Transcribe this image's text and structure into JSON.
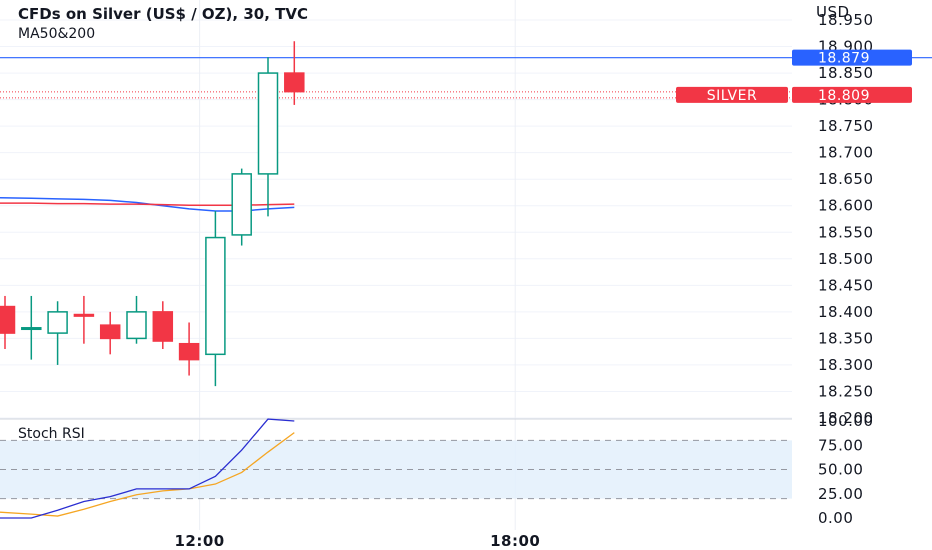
{
  "chart_data": {
    "type": "candlestick",
    "title": "CFDs on Silver (US$ / OZ), 30, TVC",
    "subtitle": "MA50&200",
    "currency": "USD",
    "price_axis": {
      "ylim": [
        18.2,
        18.95
      ],
      "ticks": [
        "18.950",
        "18.900",
        "18.850",
        "18.800",
        "18.750",
        "18.700",
        "18.650",
        "18.600",
        "18.550",
        "18.500",
        "18.450",
        "18.400",
        "18.350",
        "18.300",
        "18.250",
        "18.200"
      ]
    },
    "time_axis": {
      "ticks": [
        {
          "label": "12:00",
          "bar_index": 7.4
        },
        {
          "label": "18:00",
          "bar_index": 19.4
        }
      ]
    },
    "candles": [
      {
        "o": 18.41,
        "h": 18.43,
        "l": 18.33,
        "c": 18.36,
        "dir": "down"
      },
      {
        "o": 18.37,
        "h": 18.43,
        "l": 18.31,
        "c": 18.37,
        "dir": "up"
      },
      {
        "o": 18.36,
        "h": 18.42,
        "l": 18.3,
        "c": 18.4,
        "dir": "up"
      },
      {
        "o": 18.395,
        "h": 18.43,
        "l": 18.34,
        "c": 18.392,
        "dir": "down"
      },
      {
        "o": 18.375,
        "h": 18.4,
        "l": 18.32,
        "c": 18.35,
        "dir": "down"
      },
      {
        "o": 18.35,
        "h": 18.43,
        "l": 18.34,
        "c": 18.4,
        "dir": "up"
      },
      {
        "o": 18.4,
        "h": 18.42,
        "l": 18.33,
        "c": 18.345,
        "dir": "down"
      },
      {
        "o": 18.34,
        "h": 18.38,
        "l": 18.28,
        "c": 18.31,
        "dir": "down"
      },
      {
        "o": 18.32,
        "h": 18.59,
        "l": 18.26,
        "c": 18.54,
        "dir": "up"
      },
      {
        "o": 18.545,
        "h": 18.67,
        "l": 18.525,
        "c": 18.66,
        "dir": "up"
      },
      {
        "o": 18.66,
        "h": 18.88,
        "l": 18.58,
        "c": 18.85,
        "dir": "up"
      },
      {
        "o": 18.85,
        "h": 18.91,
        "l": 18.79,
        "c": 18.815,
        "dir": "down"
      }
    ],
    "moving_averages": [
      {
        "name": "MA50",
        "color": "#2962ff",
        "values": [
          18.615,
          18.614,
          18.613,
          18.612,
          18.61,
          18.606,
          18.6,
          18.594,
          18.59,
          18.59,
          18.594,
          18.597
        ]
      },
      {
        "name": "MA200",
        "color": "#f23645",
        "values": [
          18.605,
          18.605,
          18.604,
          18.604,
          18.603,
          18.603,
          18.602,
          18.601,
          18.601,
          18.601,
          18.602,
          18.603
        ]
      }
    ],
    "price_lines": [
      {
        "label": "18.879",
        "value": 18.879,
        "color": "#2962ff"
      },
      {
        "tag": "SILVER",
        "label": "18.809",
        "value": 18.809,
        "color": "#f23645"
      }
    ],
    "stoch_rsi": {
      "title": "Stoch RSI",
      "ylim": [
        0,
        100
      ],
      "ticks": [
        "100.00",
        "75.00",
        "50.00",
        "25.00",
        "0.00"
      ],
      "band": [
        20,
        80
      ],
      "k": {
        "color": "#2a2ed1",
        "values": [
          0,
          0,
          8,
          17,
          22,
          30,
          30,
          30,
          43,
          70,
          102,
          100
        ]
      },
      "d": {
        "color": "#f5a623",
        "values": [
          6,
          4,
          2,
          9,
          17,
          24,
          28,
          30,
          35,
          47,
          68,
          88
        ]
      }
    }
  }
}
